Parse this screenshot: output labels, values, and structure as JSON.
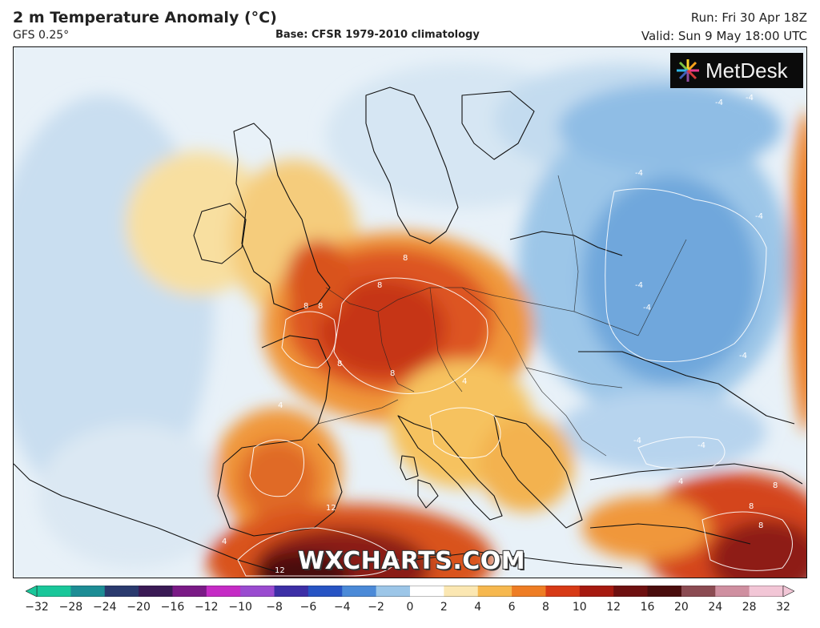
{
  "header": {
    "title": "2 m Temperature Anomaly (°C)",
    "model": "GFS 0.25°",
    "base": "Base: CFSR 1979-2010 climatology",
    "run": "Run: Fri 30 Apr 18Z",
    "valid": "Valid: Sun 9 May 18:00 UTC"
  },
  "logo": {
    "text": "MetDesk"
  },
  "watermark": {
    "text": "WXCHARTS.COM"
  },
  "colorbar": {
    "ticks": [
      "−32",
      "−28",
      "−24",
      "−20",
      "−16",
      "−12",
      "−10",
      "−8",
      "−6",
      "−4",
      "−2",
      "0",
      "2",
      "4",
      "6",
      "8",
      "10",
      "12",
      "16",
      "20",
      "24",
      "28",
      "32"
    ],
    "colors": [
      "#19c79a",
      "#1d8d95",
      "#2a3a6e",
      "#3a1a55",
      "#7a1a86",
      "#c52bc5",
      "#9a4bd0",
      "#3d2fa6",
      "#2754c4",
      "#4b8ad8",
      "#9cc6e8",
      "#ffffff",
      "#fbe7b2",
      "#f6b84f",
      "#ee7d24",
      "#d73a16",
      "#a61a10",
      "#6e1010",
      "#4a0d0d",
      "#8b4b52",
      "#cf8fa0",
      "#f2c6d6"
    ]
  },
  "contours": {
    "warm_labels": [
      "8",
      "8",
      "8",
      "8",
      "8",
      "8",
      "4",
      "4",
      "4",
      "4",
      "12",
      "12",
      "8",
      "8",
      "8"
    ],
    "cold_labels": [
      "-4",
      "-4",
      "-4",
      "-4",
      "-4",
      "-4",
      "-4",
      "-4",
      "-4"
    ]
  }
}
